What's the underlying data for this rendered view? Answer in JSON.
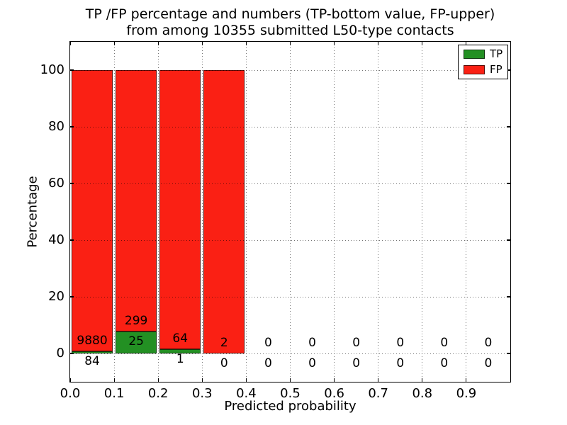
{
  "title": {
    "line1": "TP /FP percentage and numbers (TP-bottom value, FP-upper)",
    "line2": "from among 10355 submitted L50-type contacts"
  },
  "axes": {
    "xlabel": "Predicted probability",
    "ylabel": "Percentage",
    "x_tick_labels": [
      "0.0",
      "0.1",
      "0.2",
      "0.3",
      "0.4",
      "0.5",
      "0.6",
      "0.7",
      "0.8",
      "0.9"
    ],
    "y_tick_values": [
      0,
      20,
      40,
      60,
      80,
      100
    ],
    "xlim": [
      0.0,
      1.0
    ],
    "ylim": [
      -10,
      110
    ],
    "grid_style": "dotted",
    "grid_above_bars": true
  },
  "legend": {
    "position": "upper right",
    "items": [
      {
        "label": "TP",
        "color": "#239023"
      },
      {
        "label": "FP",
        "color": "#fa2014"
      }
    ]
  },
  "chart_data": {
    "type": "bar",
    "stacked": true,
    "unit": "percent",
    "total_submitted_contacts": 10355,
    "bins": [
      "0.0-0.1",
      "0.1-0.2",
      "0.2-0.3",
      "0.3-0.4",
      "0.4-0.5",
      "0.5-0.6",
      "0.6-0.7",
      "0.7-0.8",
      "0.8-0.9",
      "0.9-1.0"
    ],
    "bin_edges": [
      0.0,
      0.1,
      0.2,
      0.3,
      0.4,
      0.5,
      0.6,
      0.7,
      0.8,
      0.9,
      1.0
    ],
    "series": [
      {
        "name": "TP",
        "color": "#239023",
        "counts": [
          84,
          25,
          1,
          0,
          0,
          0,
          0,
          0,
          0,
          0
        ],
        "percentages": [
          0.84,
          7.72,
          1.54,
          0,
          0,
          0,
          0,
          0,
          0,
          0
        ]
      },
      {
        "name": "FP",
        "color": "#fa2014",
        "counts": [
          9880,
          299,
          64,
          2,
          0,
          0,
          0,
          0,
          0,
          0
        ],
        "percentages": [
          99.16,
          92.28,
          98.46,
          100,
          0,
          0,
          0,
          0,
          0,
          0
        ]
      }
    ],
    "note": "Bars drawn only for bins with nonzero totals; each drawn bar stacks to 100%. FP count printed above TP-bar top, TP count printed below it."
  }
}
